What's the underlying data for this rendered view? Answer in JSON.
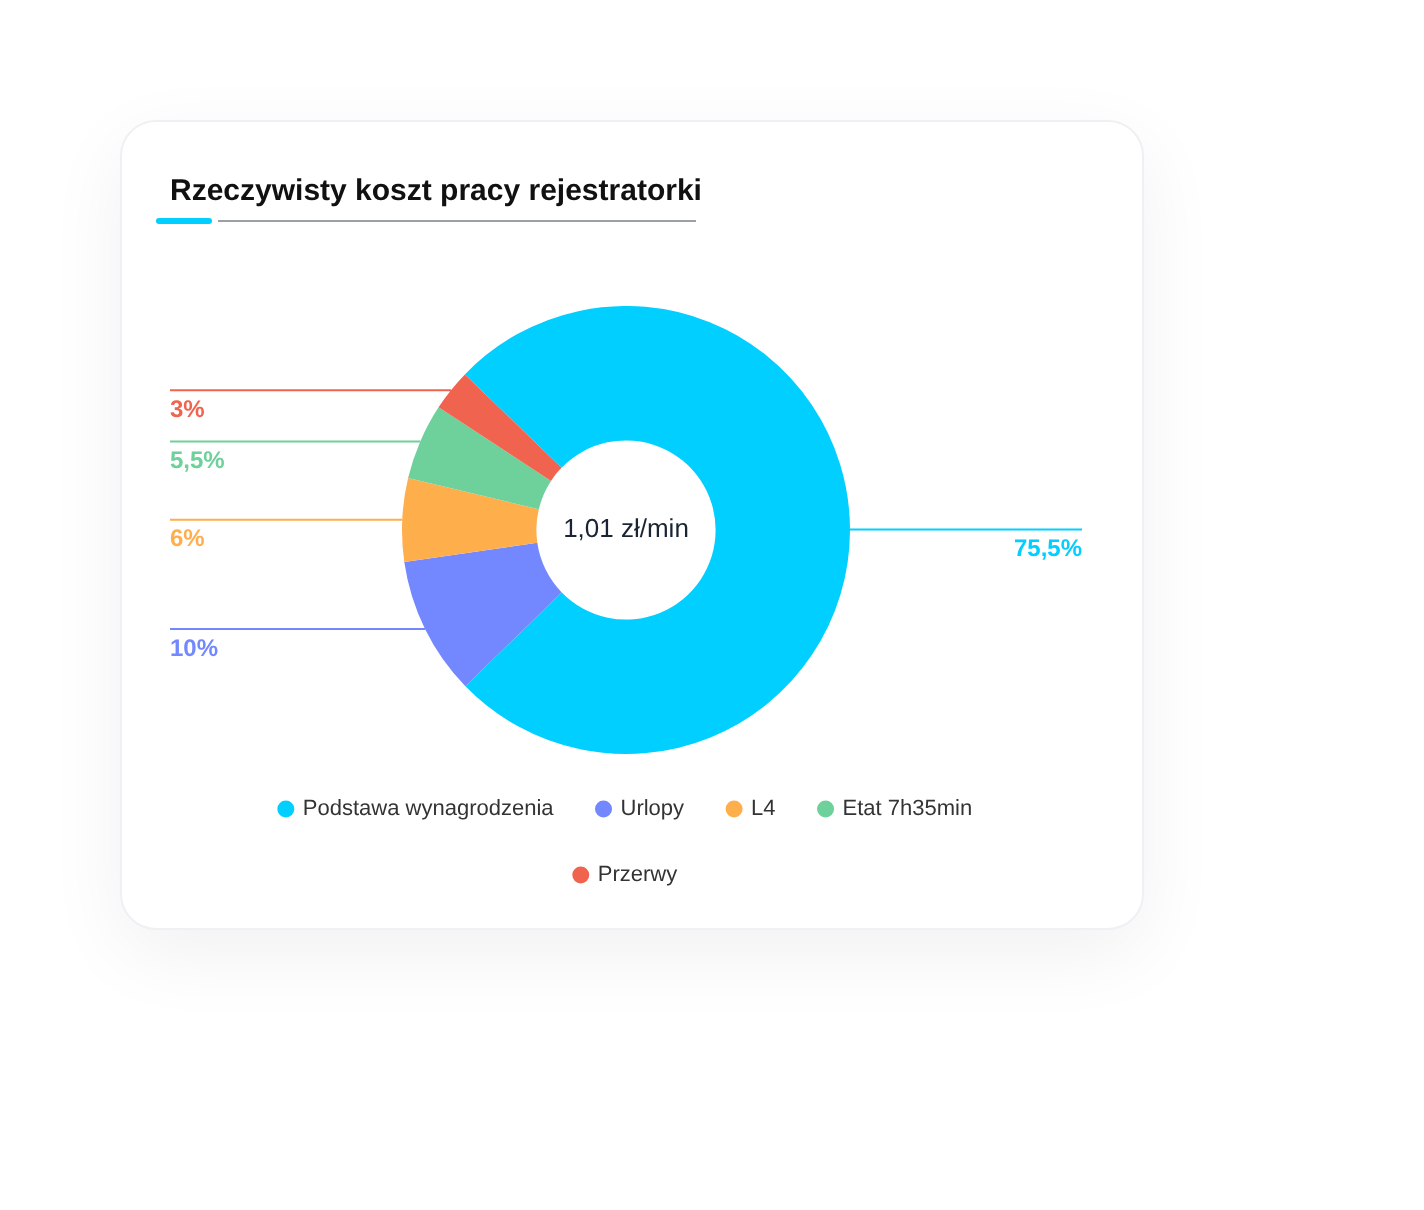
{
  "chart_data": {
    "type": "donut",
    "title": "Rzeczywisty koszt pracy rejestratorki",
    "categories": [
      "Podstawa wynagrodzenia",
      "Urlopy",
      "L4",
      "Etat 7h35min",
      "Przerwy"
    ],
    "values": [
      75.5,
      10,
      6,
      5.5,
      3
    ],
    "value_labels": [
      "75,5%",
      "10%",
      "6%",
      "5,5%",
      "3%"
    ],
    "colors": [
      "#00cfff",
      "#7387ff",
      "#ffae4c",
      "#6ed09a",
      "#f0644f"
    ],
    "annotations": [
      "1,01 zł/min"
    ],
    "legend": "bottom"
  }
}
